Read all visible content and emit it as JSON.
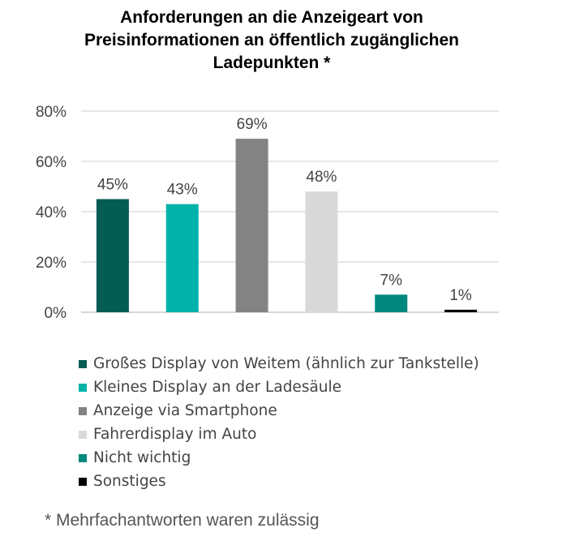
{
  "chart_data": {
    "type": "bar",
    "title_lines": [
      "Anforderungen an die Anzeigeart von",
      "Preisinformationen an öffentlich zugänglichen",
      "Ladepunkten *"
    ],
    "categories": [
      "Großes Display von Weitem (ähnlich zur Tankstelle)",
      "Kleines Display an der Ladesäule",
      "Anzeige via Smartphone",
      "Fahrerdisplay im Auto",
      "Nicht wichtig",
      "Sonstiges"
    ],
    "values": [
      45,
      43,
      69,
      48,
      7,
      1
    ],
    "data_labels": [
      "45%",
      "43%",
      "69%",
      "48%",
      "7%",
      "1%"
    ],
    "colors": [
      "#045c53",
      "#00b2a9",
      "#838383",
      "#d9d9d9",
      "#02887f",
      "#000000"
    ],
    "ylim": [
      0,
      80
    ],
    "yticks": [
      0,
      20,
      40,
      60,
      80
    ],
    "ytick_labels": [
      "0%",
      "20%",
      "40%",
      "60%",
      "80%"
    ],
    "grid": true,
    "legend_position": "bottom",
    "footnote": "* Mehrfachantworten waren zulässig"
  }
}
